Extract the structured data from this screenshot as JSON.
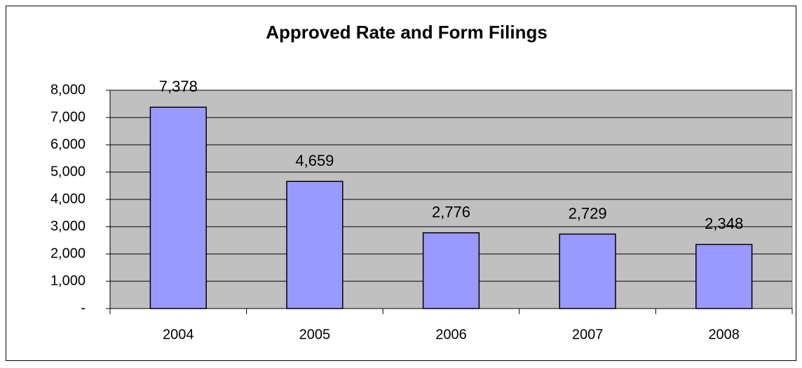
{
  "chart_data": {
    "type": "bar",
    "title": "Approved Rate and Form Filings",
    "categories": [
      "2004",
      "2005",
      "2006",
      "2007",
      "2008"
    ],
    "values": [
      7378,
      4659,
      2776,
      2729,
      2348
    ],
    "value_labels": [
      "7,378",
      "4,659",
      "2,776",
      "2,729",
      "2,348"
    ],
    "color": "#9999ff",
    "ylim": [
      0,
      8000
    ],
    "yticks": [
      {
        "value": 0,
        "label": "-"
      },
      {
        "value": 1000,
        "label": "1,000"
      },
      {
        "value": 2000,
        "label": "2,000"
      },
      {
        "value": 3000,
        "label": "3,000"
      },
      {
        "value": 4000,
        "label": "4,000"
      },
      {
        "value": 5000,
        "label": "5,000"
      },
      {
        "value": 6000,
        "label": "6,000"
      },
      {
        "value": 7000,
        "label": "7,000"
      },
      {
        "value": 8000,
        "label": "8,000"
      }
    ],
    "grid": true
  }
}
